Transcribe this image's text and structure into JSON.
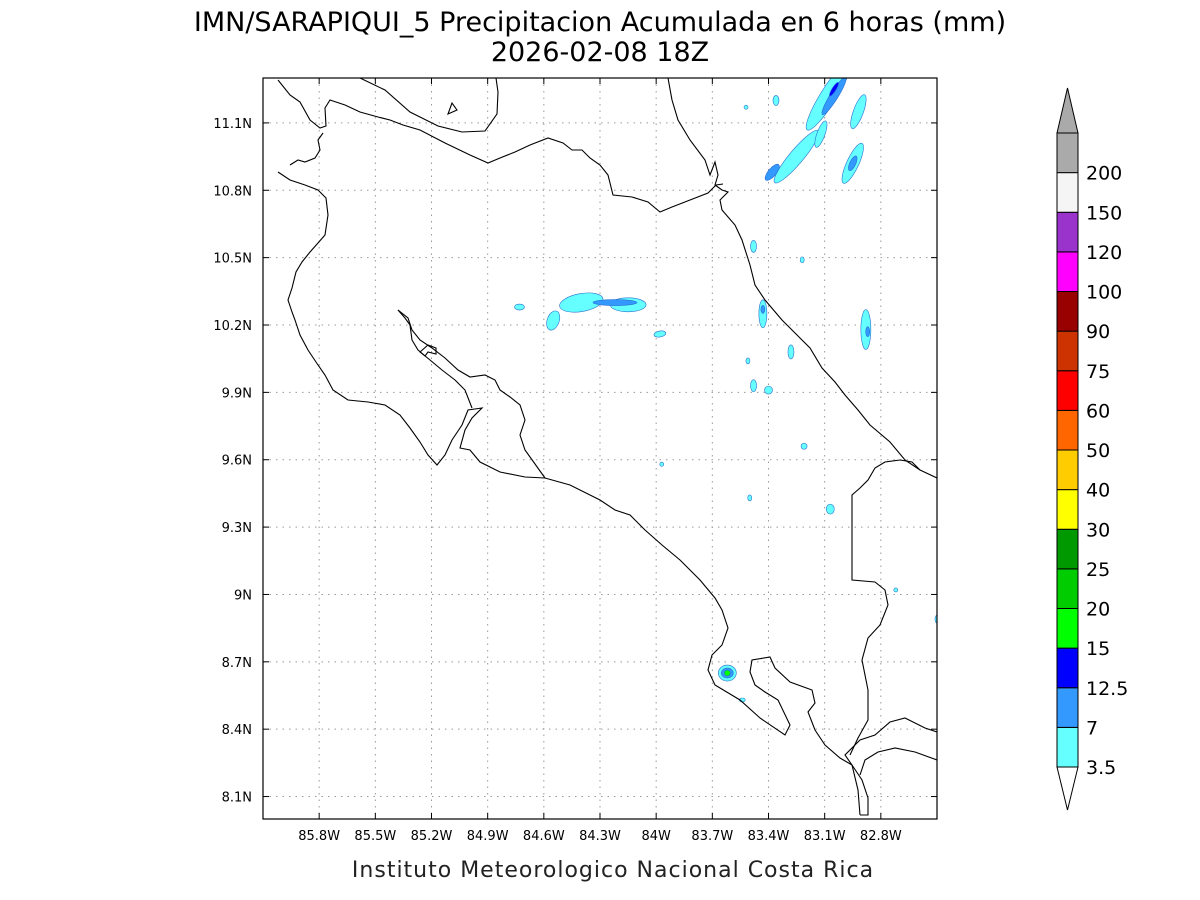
{
  "title": {
    "line1": "IMN/SARAPIQUI_5 Precipitacion Acumulada en 6 horas (mm)",
    "line2": "2026-02-08 18Z"
  },
  "credit": "Instituto Meteorologico Nacional Costa Rica",
  "map": {
    "lon_range": [
      -86.1,
      -82.5
    ],
    "lat_range": [
      8.0,
      11.3
    ],
    "lon_ticks": [
      {
        "value": -85.8,
        "label": "85.8W"
      },
      {
        "value": -85.5,
        "label": "85.5W"
      },
      {
        "value": -85.2,
        "label": "85.2W"
      },
      {
        "value": -84.9,
        "label": "84.9W"
      },
      {
        "value": -84.6,
        "label": "84.6W"
      },
      {
        "value": -84.3,
        "label": "84.3W"
      },
      {
        "value": -84.0,
        "label": "84W"
      },
      {
        "value": -83.7,
        "label": "83.7W"
      },
      {
        "value": -83.4,
        "label": "83.4W"
      },
      {
        "value": -83.1,
        "label": "83.1W"
      },
      {
        "value": -82.8,
        "label": "82.8W"
      }
    ],
    "lat_ticks": [
      {
        "value": 8.1,
        "label": "8.1N"
      },
      {
        "value": 8.4,
        "label": "8.4N"
      },
      {
        "value": 8.7,
        "label": "8.7N"
      },
      {
        "value": 9.0,
        "label": "9N"
      },
      {
        "value": 9.3,
        "label": "9.3N"
      },
      {
        "value": 9.6,
        "label": "9.6N"
      },
      {
        "value": 9.9,
        "label": "9.9N"
      },
      {
        "value": 10.2,
        "label": "10.2N"
      },
      {
        "value": 10.5,
        "label": "10.5N"
      },
      {
        "value": 10.8,
        "label": "10.8N"
      },
      {
        "value": 11.1,
        "label": "11.1N"
      }
    ],
    "grid": true
  },
  "colorbar": {
    "orientation": "vertical",
    "placement": "right",
    "levels": [
      {
        "label": "3.5",
        "color": "#66ffff"
      },
      {
        "label": "7",
        "color": "#3399ff"
      },
      {
        "label": "12.5",
        "color": "#0000ff"
      },
      {
        "label": "15",
        "color": "#00ff00"
      },
      {
        "label": "20",
        "color": "#00cc00"
      },
      {
        "label": "25",
        "color": "#009900"
      },
      {
        "label": "30",
        "color": "#ffff00"
      },
      {
        "label": "40",
        "color": "#ffcc00"
      },
      {
        "label": "50",
        "color": "#ff6600"
      },
      {
        "label": "60",
        "color": "#ff0000"
      },
      {
        "label": "75",
        "color": "#cc3300"
      },
      {
        "label": "90",
        "color": "#990000"
      },
      {
        "label": "100",
        "color": "#ff00ff"
      },
      {
        "label": "120",
        "color": "#9933cc"
      },
      {
        "label": "150",
        "color": "#f5f5f5"
      },
      {
        "label": "200",
        "color": "#aaaaaa"
      }
    ]
  },
  "precip_cells": [
    {
      "lon": -83.08,
      "lat": 11.22,
      "rx": 8,
      "ry": 40,
      "rot": 32,
      "level": 0
    },
    {
      "lon": -83.05,
      "lat": 11.22,
      "rx": 4,
      "ry": 22,
      "rot": 32,
      "level": 1
    },
    {
      "lon": -83.05,
      "lat": 11.25,
      "rx": 2,
      "ry": 8,
      "rot": 32,
      "level": 2
    },
    {
      "lon": -83.25,
      "lat": 10.95,
      "rx": 7,
      "ry": 34,
      "rot": 40,
      "level": 0
    },
    {
      "lon": -83.38,
      "lat": 10.88,
      "rx": 4,
      "ry": 10,
      "rot": 40,
      "level": 1
    },
    {
      "lon": -82.95,
      "lat": 10.92,
      "rx": 6,
      "ry": 22,
      "rot": 25,
      "level": 0
    },
    {
      "lon": -82.95,
      "lat": 10.92,
      "rx": 3,
      "ry": 8,
      "rot": 25,
      "level": 1
    },
    {
      "lon": -83.12,
      "lat": 11.05,
      "rx": 4,
      "ry": 14,
      "rot": 20,
      "level": 0
    },
    {
      "lon": -82.92,
      "lat": 11.15,
      "rx": 5,
      "ry": 18,
      "rot": 20,
      "level": 0
    },
    {
      "lon": -84.4,
      "lat": 10.3,
      "rx": 22,
      "ry": 9,
      "rot": -10,
      "level": 0
    },
    {
      "lon": -84.15,
      "lat": 10.29,
      "rx": 18,
      "ry": 7,
      "rot": 0,
      "level": 0
    },
    {
      "lon": -84.22,
      "lat": 10.3,
      "rx": 22,
      "ry": 3,
      "rot": 0,
      "level": 1
    },
    {
      "lon": -84.55,
      "lat": 10.22,
      "rx": 6,
      "ry": 10,
      "rot": 20,
      "level": 0
    },
    {
      "lon": -84.73,
      "lat": 10.28,
      "rx": 5,
      "ry": 3,
      "rot": 0,
      "level": 0
    },
    {
      "lon": -83.98,
      "lat": 10.16,
      "rx": 6,
      "ry": 3,
      "rot": -10,
      "level": 0
    },
    {
      "lon": -83.43,
      "lat": 10.25,
      "rx": 4,
      "ry": 14,
      "rot": 0,
      "level": 0
    },
    {
      "lon": -83.43,
      "lat": 10.27,
      "rx": 2,
      "ry": 4,
      "rot": 0,
      "level": 1
    },
    {
      "lon": -82.88,
      "lat": 10.18,
      "rx": 5,
      "ry": 20,
      "rot": 0,
      "level": 0
    },
    {
      "lon": -82.87,
      "lat": 10.17,
      "rx": 2,
      "ry": 5,
      "rot": 0,
      "level": 1
    },
    {
      "lon": -83.48,
      "lat": 10.55,
      "rx": 3,
      "ry": 6,
      "rot": 0,
      "level": 0
    },
    {
      "lon": -83.28,
      "lat": 10.08,
      "rx": 3,
      "ry": 7,
      "rot": 0,
      "level": 0
    },
    {
      "lon": -83.4,
      "lat": 9.91,
      "rx": 4,
      "ry": 4,
      "rot": 0,
      "level": 0
    },
    {
      "lon": -83.48,
      "lat": 9.93,
      "rx": 3,
      "ry": 6,
      "rot": 0,
      "level": 0
    },
    {
      "lon": -83.51,
      "lat": 10.04,
      "rx": 2,
      "ry": 3,
      "rot": 0,
      "level": 0
    },
    {
      "lon": -83.21,
      "lat": 9.66,
      "rx": 3,
      "ry": 3,
      "rot": 0,
      "level": 0
    },
    {
      "lon": -83.5,
      "lat": 9.43,
      "rx": 2,
      "ry": 3,
      "rot": 0,
      "level": 0
    },
    {
      "lon": -83.97,
      "lat": 9.58,
      "rx": 2,
      "ry": 2,
      "rot": 0,
      "level": 0
    },
    {
      "lon": -83.07,
      "lat": 9.38,
      "rx": 4,
      "ry": 5,
      "rot": 0,
      "level": 0
    },
    {
      "lon": -83.22,
      "lat": 10.49,
      "rx": 2,
      "ry": 3,
      "rot": 0,
      "level": 0
    },
    {
      "lon": -83.62,
      "lat": 8.65,
      "rx": 9,
      "ry": 8,
      "rot": 0,
      "level": 0
    },
    {
      "lon": -83.62,
      "lat": 8.65,
      "rx": 6,
      "ry": 5,
      "rot": 0,
      "level": 1
    },
    {
      "lon": -83.62,
      "lat": 8.65,
      "rx": 3,
      "ry": 3,
      "rot": 0,
      "level": 3
    },
    {
      "lon": -83.54,
      "lat": 8.53,
      "rx": 3,
      "ry": 2,
      "rot": 0,
      "level": 0
    },
    {
      "lon": -82.72,
      "lat": 9.02,
      "rx": 2,
      "ry": 2,
      "rot": 0,
      "level": 0
    },
    {
      "lon": -82.5,
      "lat": 8.89,
      "rx": 2,
      "ry": 4,
      "rot": 0,
      "level": 0
    },
    {
      "lon": -83.52,
      "lat": 11.17,
      "rx": 2,
      "ry": 2,
      "rot": 0,
      "level": 0
    },
    {
      "lon": -83.36,
      "lat": 11.2,
      "rx": 3,
      "ry": 5,
      "rot": 0,
      "level": 0
    }
  ]
}
